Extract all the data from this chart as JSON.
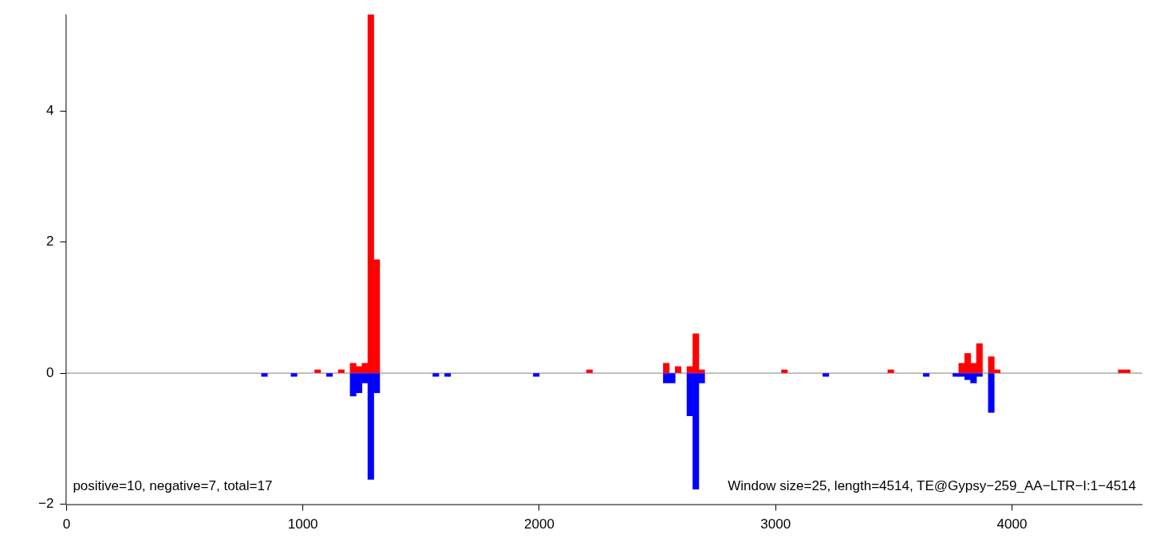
{
  "chart_data": {
    "type": "bar",
    "series": [
      {
        "color": "#ff0000",
        "x": [
          1062.5,
          1162.5,
          1212.5,
          1237.5,
          1262.5,
          1287.5,
          1312.5,
          2212.5,
          2537.5,
          2587.5,
          2637.5,
          2662.5,
          2687.5,
          3037.5,
          3487.5,
          3787.5,
          3812.5,
          3837.5,
          3862.5,
          3912.5,
          3937.5,
          4462.5,
          4487.5
        ],
        "values": [
          0.05,
          0.05,
          0.15,
          0.1,
          0.15,
          5.47,
          1.73,
          0.05,
          0.15,
          0.1,
          0.1,
          0.6,
          0.05,
          0.05,
          0.05,
          0.15,
          0.3,
          0.15,
          0.45,
          0.25,
          0.05,
          0.05,
          0.05
        ]
      },
      {
        "color": "#0000ff",
        "x": [
          837.5,
          962.5,
          1112.5,
          1212.5,
          1237.5,
          1262.5,
          1287.5,
          1312.5,
          1562.5,
          1612.5,
          1987.5,
          2537.5,
          2562.5,
          2637.5,
          2662.5,
          2687.5,
          3212.5,
          3637.5,
          3762.5,
          3787.5,
          3812.5,
          3837.5,
          3862.5,
          3912.5
        ],
        "values": [
          -0.05,
          -0.05,
          -0.05,
          -0.35,
          -0.3,
          -0.15,
          -1.62,
          -0.3,
          -0.05,
          -0.05,
          -0.05,
          -0.15,
          -0.15,
          -0.65,
          -1.77,
          -0.15,
          -0.05,
          -0.05,
          -0.05,
          -0.05,
          -0.1,
          -0.15,
          -0.05,
          -0.6
        ]
      }
    ],
    "xlim": [
      0,
      4552
    ],
    "xticks": [
      0,
      1000,
      2000,
      3000,
      4000
    ],
    "ylim": [
      -2,
      5.47
    ],
    "yticks": [
      {
        "value": -2,
        "label": "−2"
      },
      0,
      2,
      4
    ],
    "ref_lines": [
      {
        "axis": "y",
        "value": 0,
        "color": "#808080"
      }
    ],
    "annotations": [
      "positive=10, negative=7, total=17",
      "Window size=25, length=4514, TE@Gypsy−259_AA−LTR−I:1−4514"
    ],
    "grid": false,
    "legend": false
  }
}
